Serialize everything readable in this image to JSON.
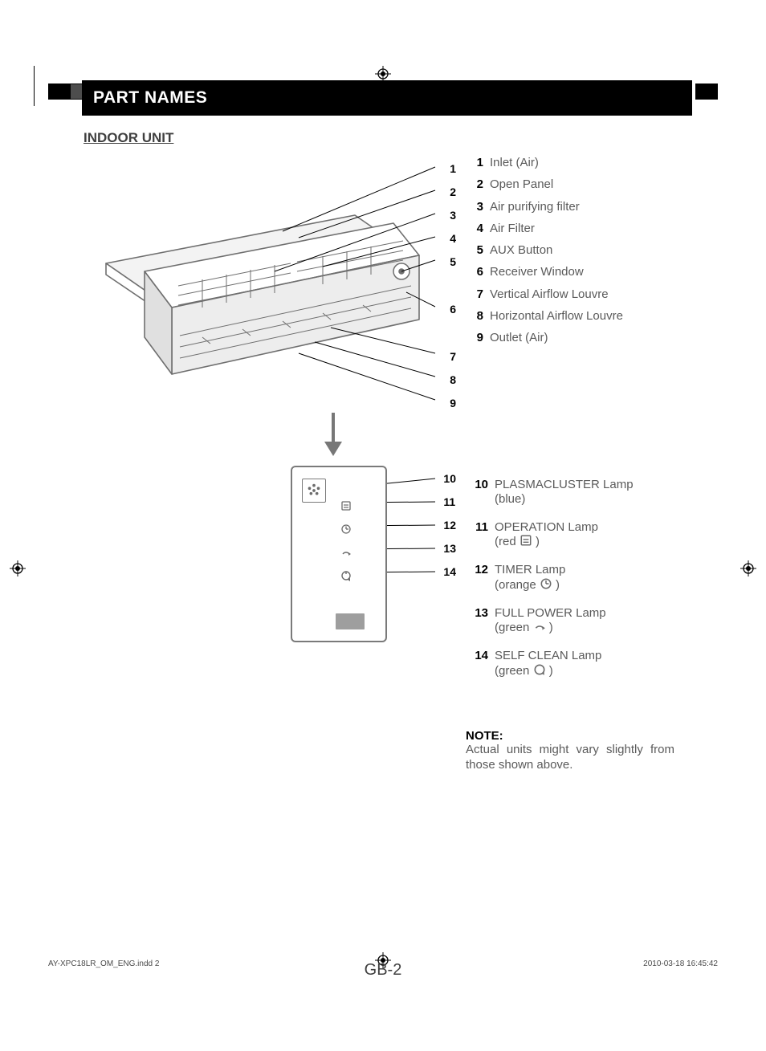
{
  "print": {
    "left_strip_colors": [
      "#000000",
      "#4d4d4d",
      "#808080",
      "#b3b3b3",
      "#d9d9d9",
      "#ffffff",
      "#ffffff",
      "#ffffff",
      "#ffffff",
      "#ffffff"
    ],
    "right_strip_colors": [
      "#fff200",
      "#ec008c",
      "#00aeef",
      "#00a651",
      "#ed1c24",
      "#2e3192",
      "#f7941d",
      "#f49ac1",
      "#ffffff",
      "#000000"
    ]
  },
  "title": "PART NAMES",
  "subhead": "INDOOR UNIT",
  "parts_top": [
    {
      "num": "1",
      "desc": "Inlet (Air)"
    },
    {
      "num": "2",
      "desc": "Open Panel"
    },
    {
      "num": "3",
      "desc": "Air purifying filter"
    },
    {
      "num": "4",
      "desc": "Air Filter"
    },
    {
      "num": "5",
      "desc": "AUX Button"
    },
    {
      "num": "6",
      "desc": "Receiver Window"
    },
    {
      "num": "7",
      "desc": "Vertical Airflow Louvre"
    },
    {
      "num": "8",
      "desc": "Horizontal Airflow Louvre"
    },
    {
      "num": "9",
      "desc": "Outlet (Air)"
    }
  ],
  "callouts_top": [
    "1",
    "2",
    "3",
    "4",
    "5",
    "6",
    "7",
    "8",
    "9"
  ],
  "parts_bottom": [
    {
      "num": "10",
      "desc": "PLASMACLUSTER Lamp",
      "sub": "(blue)",
      "icon": null
    },
    {
      "num": "11",
      "desc": "OPERATION Lamp",
      "sub": "(red ",
      "icon": "op",
      "tail": " )"
    },
    {
      "num": "12",
      "desc": "TIMER Lamp",
      "sub": "(orange ",
      "icon": "timer",
      "tail": " )"
    },
    {
      "num": "13",
      "desc": "FULL POWER Lamp",
      "sub": "(green ",
      "icon": "power",
      "tail": " )"
    },
    {
      "num": "14",
      "desc": "SELF CLEAN Lamp",
      "sub": "(green ",
      "icon": "clean",
      "tail": " )"
    }
  ],
  "callouts_bottom": [
    "10",
    "11",
    "12",
    "13",
    "14"
  ],
  "note_head": "NOTE:",
  "note_body": "Actual units might vary slightly from those shown above.",
  "page_num": "GB-2",
  "footer": {
    "file": "AY-XPC18LR_OM_ENG.indd   2",
    "stamp": "2010-03-18   16:45:42"
  }
}
